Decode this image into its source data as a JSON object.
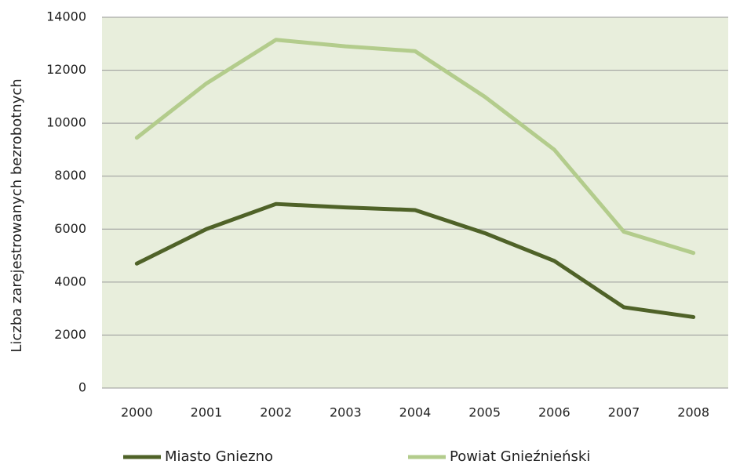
{
  "chart_data": {
    "type": "line",
    "y_label": "Liczba zarejestrowanych bezrobotnych",
    "categories": [
      "2000",
      "2001",
      "2002",
      "2003",
      "2004",
      "2005",
      "2006",
      "2007",
      "2008"
    ],
    "series": [
      {
        "name": "Miasto Gniezno",
        "color": "#4f6228",
        "values": [
          4700,
          6000,
          6950,
          6820,
          6720,
          5850,
          4800,
          3050,
          2680
        ]
      },
      {
        "name": "Powiat Gnieźnieński",
        "color": "#b3cc8c",
        "values": [
          9450,
          11500,
          13150,
          12900,
          12720,
          11000,
          9000,
          5900,
          5100
        ]
      }
    ],
    "ylim": [
      0,
      14000
    ],
    "yticks": [
      0,
      2000,
      4000,
      6000,
      8000,
      10000,
      12000,
      14000
    ],
    "grid": true,
    "legend": "bottom"
  }
}
